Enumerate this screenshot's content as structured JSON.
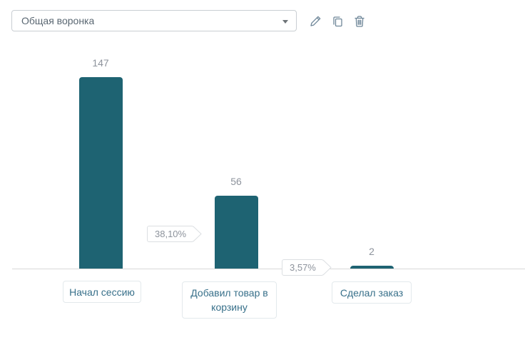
{
  "toolbar": {
    "funnel_select": {
      "value": "Общая воронка",
      "caret_icon": "chevron-down"
    },
    "buttons": [
      {
        "icon": "pencil",
        "action": "edit"
      },
      {
        "icon": "copy",
        "action": "duplicate"
      },
      {
        "icon": "trash",
        "action": "delete"
      }
    ]
  },
  "chart_data": {
    "type": "bar",
    "title": "Общая воронка",
    "categories": [
      "Начал сессию",
      "Добавил товар в корзину",
      "Сделал заказ"
    ],
    "values": [
      147,
      56,
      2
    ],
    "value_labels": [
      "147",
      "56",
      "2"
    ],
    "conversion_labels": [
      "38,10%",
      "3,57%"
    ],
    "ylim": [
      0,
      147
    ],
    "grid": false,
    "legend": false,
    "bar_color": "#1e6372"
  },
  "colors": {
    "bar": "#1e6372",
    "value_label": "#8d939c",
    "category_text": "#38708a",
    "category_border": "#e3e9ec",
    "axis_line": "#d9d9d9",
    "badge_border": "#dcdfe2",
    "badge_text": "#8d939c",
    "icon": "#6f8799",
    "select_border": "#c9ced3",
    "select_text": "#5a6772"
  }
}
